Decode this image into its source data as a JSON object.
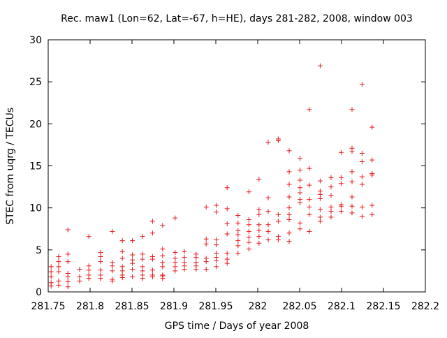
{
  "chart_data": {
    "type": "scatter",
    "title": "Rec. maw1 (Lon=62, Lat=-67, h=HE), days 281-282, 2008, window 003",
    "xlabel": "GPS time / Days of year 2008",
    "ylabel": "STEC from uqrg / TECUs",
    "xlim": [
      281.75,
      282.2
    ],
    "ylim": [
      0,
      30
    ],
    "xticks": [
      281.75,
      281.8,
      281.85,
      281.9,
      281.95,
      282,
      282.05,
      282.1,
      282.15,
      282.2
    ],
    "xtick_labels": [
      "281.75",
      "281.8",
      "281.85",
      "281.9",
      "281.95",
      "282",
      "282.05",
      "282.1",
      "282.15",
      "282.2"
    ],
    "yticks": [
      0,
      5,
      10,
      15,
      20,
      25,
      30
    ],
    "ytick_labels": [
      "0",
      "5",
      "10",
      "15",
      "20",
      "25",
      "30"
    ],
    "marker": "+",
    "color": "#e41a1c",
    "grid": false,
    "series": [
      {
        "name": "STEC",
        "points": [
          [
            281.7535,
            0.7
          ],
          [
            281.7535,
            1.1
          ],
          [
            281.7535,
            1.8
          ],
          [
            281.7535,
            2.4
          ],
          [
            281.7535,
            3.0
          ],
          [
            281.7625,
            0.8
          ],
          [
            281.7625,
            1.3
          ],
          [
            281.7625,
            2.4
          ],
          [
            281.7625,
            3.0
          ],
          [
            281.7625,
            3.6
          ],
          [
            281.7625,
            4.2
          ],
          [
            281.7735,
            0.6
          ],
          [
            281.7735,
            1.2
          ],
          [
            281.7735,
            1.8
          ],
          [
            281.7735,
            2.2
          ],
          [
            281.7735,
            3.6
          ],
          [
            281.7735,
            4.5
          ],
          [
            281.7735,
            7.4
          ],
          [
            281.7875,
            1.3
          ],
          [
            281.7875,
            1.8
          ],
          [
            281.7875,
            2.7
          ],
          [
            281.7985,
            1.6
          ],
          [
            281.7985,
            2.0
          ],
          [
            281.7985,
            2.6
          ],
          [
            281.7985,
            3.1
          ],
          [
            281.7985,
            6.6
          ],
          [
            281.8125,
            1.6
          ],
          [
            281.8125,
            2.0
          ],
          [
            281.8125,
            2.6
          ],
          [
            281.8125,
            3.6
          ],
          [
            281.8125,
            4.2
          ],
          [
            281.8125,
            4.7
          ],
          [
            281.8265,
            1.3
          ],
          [
            281.8265,
            1.5
          ],
          [
            281.8265,
            2.5
          ],
          [
            281.8265,
            3.1
          ],
          [
            281.8265,
            3.5
          ],
          [
            281.8265,
            7.2
          ],
          [
            281.8385,
            1.7
          ],
          [
            281.8385,
            2.0
          ],
          [
            281.8385,
            2.5
          ],
          [
            281.8385,
            3.0
          ],
          [
            281.8385,
            4.0
          ],
          [
            281.8385,
            4.8
          ],
          [
            281.8385,
            6.1
          ],
          [
            281.8505,
            1.8
          ],
          [
            281.8505,
            2.7
          ],
          [
            281.8505,
            3.4
          ],
          [
            281.8505,
            3.8
          ],
          [
            281.8505,
            4.4
          ],
          [
            281.8505,
            6.1
          ],
          [
            281.8625,
            1.6
          ],
          [
            281.8625,
            2.0
          ],
          [
            281.8625,
            2.5
          ],
          [
            281.8625,
            3.0
          ],
          [
            281.8625,
            3.9
          ],
          [
            281.8625,
            4.5
          ],
          [
            281.8625,
            6.6
          ],
          [
            281.8745,
            1.8
          ],
          [
            281.8745,
            2.0
          ],
          [
            281.8745,
            2.6
          ],
          [
            281.8745,
            3.9
          ],
          [
            281.8745,
            4.2
          ],
          [
            281.8745,
            7.0
          ],
          [
            281.8745,
            8.4
          ],
          [
            281.8865,
            1.6
          ],
          [
            281.8865,
            1.9
          ],
          [
            281.8865,
            2.0
          ],
          [
            281.8865,
            3.0
          ],
          [
            281.8865,
            3.5
          ],
          [
            281.8865,
            4.3
          ],
          [
            281.8865,
            5.1
          ],
          [
            281.8865,
            7.9
          ],
          [
            281.9015,
            2.5
          ],
          [
            281.9015,
            3.0
          ],
          [
            281.9015,
            3.5
          ],
          [
            281.9015,
            4.0
          ],
          [
            281.9015,
            4.7
          ],
          [
            281.9015,
            8.8
          ],
          [
            281.9125,
            2.7
          ],
          [
            281.9125,
            3.1
          ],
          [
            281.9125,
            3.5
          ],
          [
            281.9125,
            4.1
          ],
          [
            281.9125,
            4.8
          ],
          [
            281.9265,
            2.7
          ],
          [
            281.9265,
            3.1
          ],
          [
            281.9265,
            3.5
          ],
          [
            281.9265,
            4.1
          ],
          [
            281.9265,
            4.5
          ],
          [
            281.9385,
            2.7
          ],
          [
            281.9385,
            3.6
          ],
          [
            281.9385,
            4.0
          ],
          [
            281.9385,
            5.7
          ],
          [
            281.9385,
            6.3
          ],
          [
            281.9385,
            10.1
          ],
          [
            281.9505,
            3.0
          ],
          [
            281.9505,
            3.7
          ],
          [
            281.9505,
            4.1
          ],
          [
            281.9505,
            4.6
          ],
          [
            281.9505,
            5.6
          ],
          [
            281.9505,
            6.2
          ],
          [
            281.9505,
            9.5
          ],
          [
            281.9505,
            10.3
          ],
          [
            281.9635,
            3.4
          ],
          [
            281.9635,
            3.9
          ],
          [
            281.9635,
            4.6
          ],
          [
            281.9635,
            6.9
          ],
          [
            281.9635,
            8.1
          ],
          [
            281.9635,
            9.9
          ],
          [
            281.9635,
            12.4
          ],
          [
            281.9765,
            4.6
          ],
          [
            281.9765,
            5.5
          ],
          [
            281.9765,
            6.1
          ],
          [
            281.9765,
            6.8
          ],
          [
            281.9765,
            7.3
          ],
          [
            281.9765,
            8.2
          ],
          [
            281.9765,
            9.1
          ],
          [
            281.9895,
            5.1
          ],
          [
            281.9895,
            5.9
          ],
          [
            281.9895,
            6.5
          ],
          [
            281.9895,
            7.2
          ],
          [
            281.9895,
            8.0
          ],
          [
            281.9895,
            8.6
          ],
          [
            281.9895,
            11.9
          ],
          [
            282.0015,
            5.8
          ],
          [
            282.0015,
            6.6
          ],
          [
            282.0015,
            7.3
          ],
          [
            282.0015,
            8.0
          ],
          [
            282.0015,
            9.2
          ],
          [
            282.0015,
            9.8
          ],
          [
            282.0015,
            13.4
          ],
          [
            282.0125,
            6.2
          ],
          [
            282.0125,
            7.2
          ],
          [
            282.0125,
            8.0
          ],
          [
            282.0125,
            9.6
          ],
          [
            282.0125,
            11.2
          ],
          [
            282.0125,
            17.8
          ],
          [
            282.0245,
            6.2
          ],
          [
            282.0245,
            6.6
          ],
          [
            282.0245,
            8.4
          ],
          [
            282.0245,
            9.2
          ],
          [
            282.0245,
            18.0
          ],
          [
            282.0245,
            18.2
          ],
          [
            282.0375,
            6.0
          ],
          [
            282.0375,
            7.0
          ],
          [
            282.0375,
            8.6
          ],
          [
            282.0375,
            9.2
          ],
          [
            282.0375,
            10.0
          ],
          [
            282.0375,
            11.3
          ],
          [
            282.0375,
            12.8
          ],
          [
            282.0375,
            14.3
          ],
          [
            282.0375,
            16.8
          ],
          [
            282.0505,
            7.5
          ],
          [
            282.0505,
            8.2
          ],
          [
            282.0505,
            10.6
          ],
          [
            282.0505,
            11.0
          ],
          [
            282.0505,
            11.8
          ],
          [
            282.0505,
            12.4
          ],
          [
            282.0505,
            13.3
          ],
          [
            282.0505,
            14.5
          ],
          [
            282.0505,
            15.9
          ],
          [
            282.0615,
            7.2
          ],
          [
            282.0615,
            9.2
          ],
          [
            282.0615,
            10.1
          ],
          [
            282.0615,
            11.0
          ],
          [
            282.0615,
            12.7
          ],
          [
            282.0615,
            14.7
          ],
          [
            282.0615,
            21.7
          ],
          [
            282.0745,
            8.4
          ],
          [
            282.0745,
            8.9
          ],
          [
            282.0745,
            9.8
          ],
          [
            282.0745,
            11.1
          ],
          [
            282.0745,
            11.6
          ],
          [
            282.0745,
            12.0
          ],
          [
            282.0745,
            13.2
          ],
          [
            282.0745,
            26.9
          ],
          [
            282.0875,
            8.9
          ],
          [
            282.0875,
            9.6
          ],
          [
            282.0875,
            10.1
          ],
          [
            282.0875,
            11.5
          ],
          [
            282.0875,
            12.5
          ],
          [
            282.0875,
            13.6
          ],
          [
            282.0995,
            9.6
          ],
          [
            282.0995,
            10.2
          ],
          [
            282.0995,
            10.4
          ],
          [
            282.0995,
            12.9
          ],
          [
            282.0995,
            13.6
          ],
          [
            282.0995,
            16.6
          ],
          [
            282.1125,
            9.4
          ],
          [
            282.1125,
            10.2
          ],
          [
            282.1125,
            11.3
          ],
          [
            282.1125,
            13.1
          ],
          [
            282.1125,
            14.3
          ],
          [
            282.1125,
            16.7
          ],
          [
            282.1125,
            17.1
          ],
          [
            282.1125,
            21.7
          ],
          [
            282.1245,
            9.0
          ],
          [
            282.1245,
            10.1
          ],
          [
            282.1245,
            12.8
          ],
          [
            282.1245,
            13.7
          ],
          [
            282.1245,
            15.5
          ],
          [
            282.1245,
            16.5
          ],
          [
            282.1245,
            24.7
          ],
          [
            282.1365,
            9.2
          ],
          [
            282.1365,
            10.3
          ],
          [
            282.1365,
            13.9
          ],
          [
            282.1365,
            14.1
          ],
          [
            282.1365,
            15.7
          ],
          [
            282.1365,
            19.6
          ]
        ]
      }
    ]
  }
}
